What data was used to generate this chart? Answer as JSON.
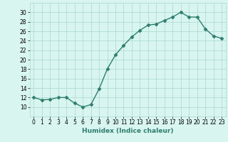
{
  "x": [
    0,
    1,
    2,
    3,
    4,
    5,
    6,
    7,
    8,
    9,
    10,
    11,
    12,
    13,
    14,
    15,
    16,
    17,
    18,
    19,
    20,
    21,
    22,
    23
  ],
  "y": [
    12.0,
    11.5,
    11.6,
    12.0,
    12.0,
    10.8,
    10.0,
    10.5,
    13.8,
    18.0,
    21.0,
    23.0,
    24.8,
    26.2,
    27.3,
    27.5,
    28.3,
    29.0,
    30.0,
    29.0,
    29.0,
    26.5,
    25.0,
    24.5
  ],
  "line_color": "#2e7d6e",
  "marker": "D",
  "markersize": 2.5,
  "linewidth": 1.0,
  "background_color": "#d8f5f0",
  "grid_color": "#aad8d0",
  "xlabel": "Humidex (Indice chaleur)",
  "ylim": [
    8,
    32
  ],
  "xlim": [
    -0.5,
    23.5
  ],
  "yticks": [
    10,
    12,
    14,
    16,
    18,
    20,
    22,
    24,
    26,
    28,
    30
  ],
  "xticks": [
    0,
    1,
    2,
    3,
    4,
    5,
    6,
    7,
    8,
    9,
    10,
    11,
    12,
    13,
    14,
    15,
    16,
    17,
    18,
    19,
    20,
    21,
    22,
    23
  ],
  "tick_label_size": 5.5,
  "xlabel_size": 6.5
}
